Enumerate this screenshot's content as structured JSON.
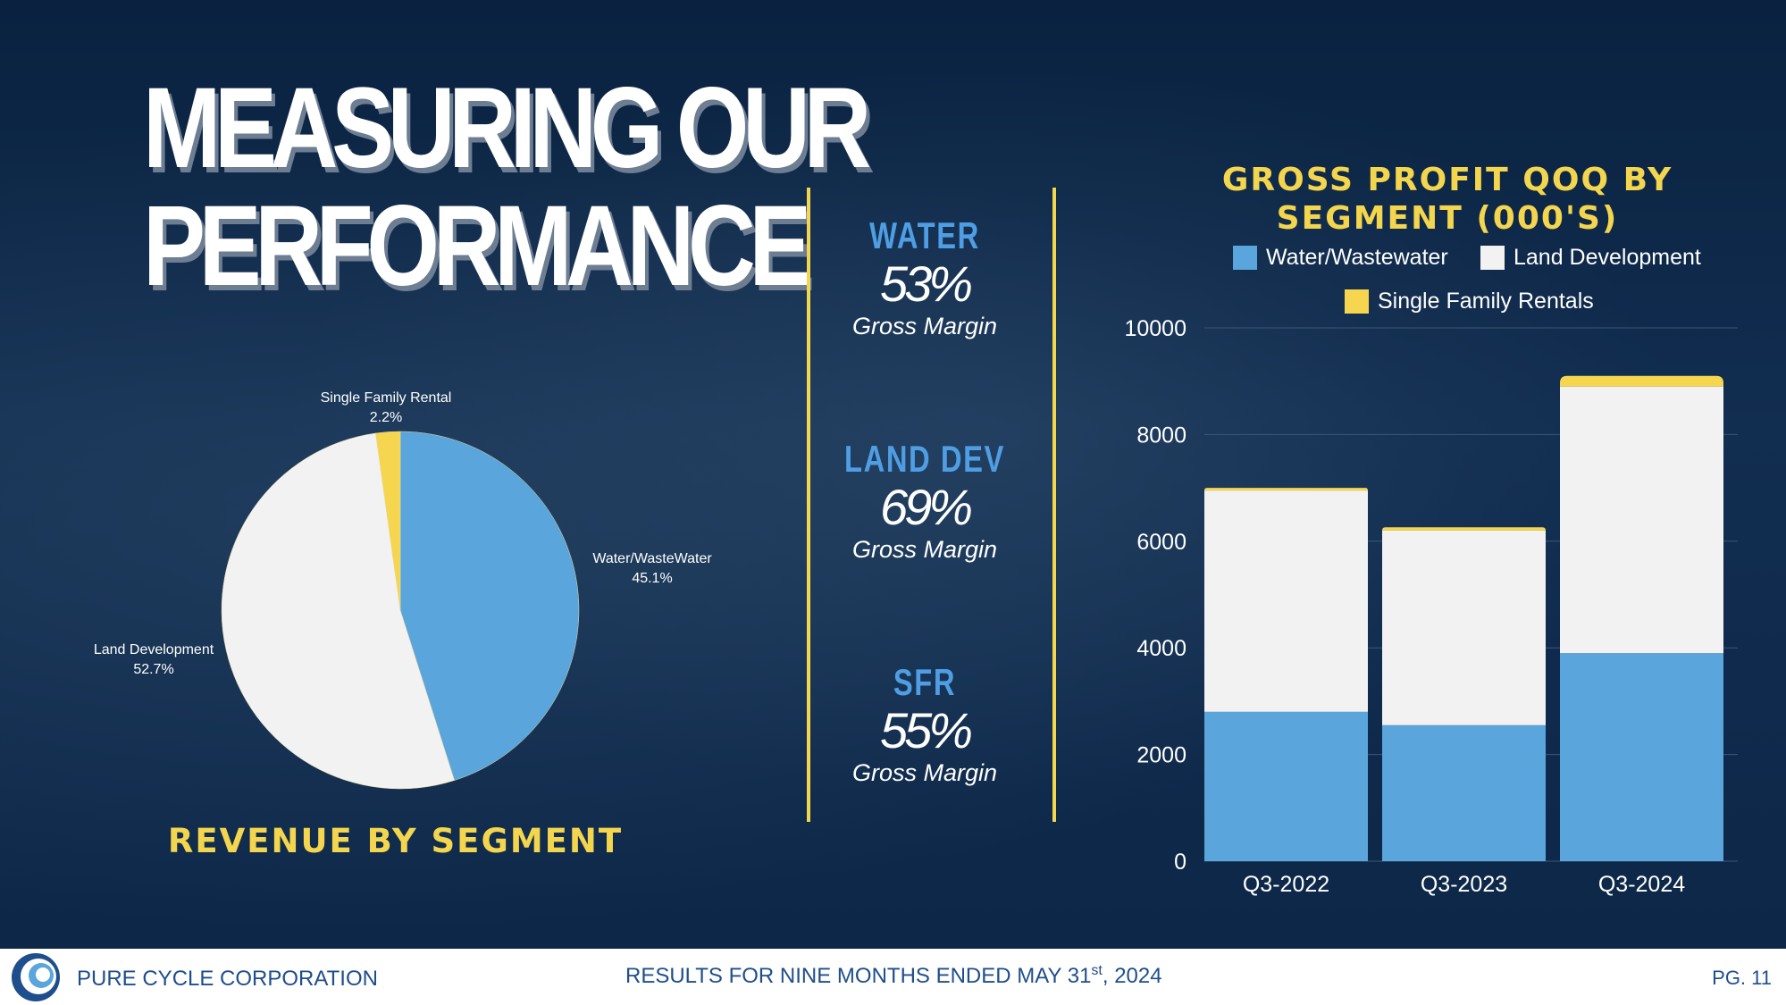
{
  "slide": {
    "title_line1": "MEASURING OUR",
    "title_line2": "PERFORMANCE"
  },
  "metrics": [
    {
      "label": "WATER",
      "value": "53%",
      "sub": "Gross Margin"
    },
    {
      "label": "LAND DEV",
      "value": "69%",
      "sub": "Gross Margin"
    },
    {
      "label": "SFR",
      "value": "55%",
      "sub": "Gross Margin"
    }
  ],
  "colors": {
    "water": "#5aa5dc",
    "land": "#f2f2f2",
    "sfr": "#f6d64f",
    "accent": "#f3d54e",
    "background": "#0d2748"
  },
  "chart_data": [
    {
      "type": "pie",
      "title": "REVENUE BY SEGMENT",
      "slices": [
        {
          "name": "Water/WasteWater",
          "value": 45.1,
          "label": "45.1%"
        },
        {
          "name": "Land Development",
          "value": 52.7,
          "label": "52.7%"
        },
        {
          "name": "Single Family Rental",
          "value": 2.2,
          "label": "2.2%"
        }
      ]
    },
    {
      "type": "bar",
      "stacked": true,
      "title": "GROSS PROFIT QOQ BY SEGMENT (000'S)",
      "categories": [
        "Q3-2022",
        "Q3-2023",
        "Q3-2024"
      ],
      "series": [
        {
          "name": "Water/Wastewater",
          "values": [
            2800,
            2550,
            3900
          ]
        },
        {
          "name": "Land Development",
          "values": [
            4150,
            3650,
            5000
          ]
        },
        {
          "name": "Single Family Rentals",
          "values": [
            50,
            60,
            200
          ]
        }
      ],
      "ylim": [
        0,
        10000
      ],
      "yticks": [
        "0",
        "2000",
        "4000",
        "6000",
        "8000",
        "10000"
      ],
      "grid": true,
      "legend": "top"
    }
  ],
  "footer": {
    "company": "PURE CYCLE CORPORATION",
    "results_prefix": "RESULTS FOR NINE MONTHS ENDED MAY 31",
    "results_sup": "st",
    "results_suffix": ", 2024",
    "page": "PG. 11"
  }
}
